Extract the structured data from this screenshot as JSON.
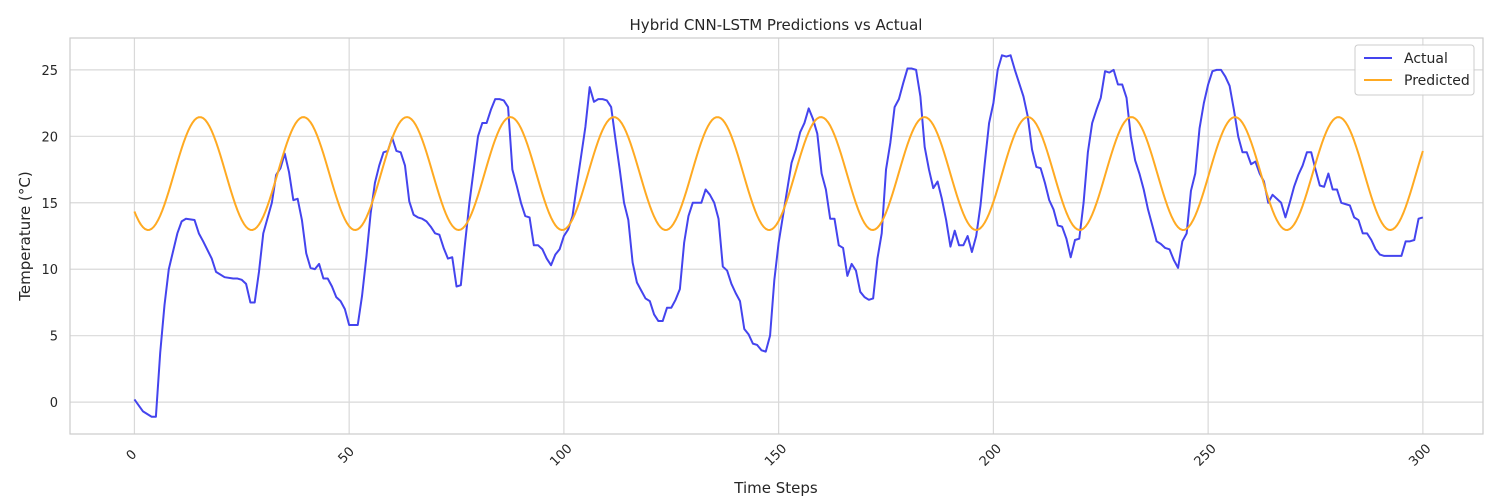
{
  "chart_data": {
    "type": "line",
    "title": "Hybrid CNN-LSTM Predictions vs Actual",
    "xlabel": "Time Steps",
    "ylabel": "Temperature (°C)",
    "xlim": [
      -15,
      314
    ],
    "ylim": [
      -2.4,
      27.4
    ],
    "x_ticks": [
      0,
      50,
      100,
      150,
      200,
      250,
      300
    ],
    "y_ticks": [
      0,
      5,
      10,
      15,
      20,
      25
    ],
    "x_tick_rotation": 45,
    "grid": true,
    "legend_position": "top-right",
    "colors": {
      "actual": "#4444ee",
      "predicted": "#ffaa22",
      "grid": "#d9d9d9",
      "axes": "#cccccc"
    },
    "actual_points": [
      [
        0,
        0.2
      ],
      [
        2,
        -0.7
      ],
      [
        4,
        -1.1
      ],
      [
        5,
        -1.1
      ],
      [
        6,
        3.7
      ],
      [
        7,
        7.3
      ],
      [
        8,
        10.0
      ],
      [
        10,
        12.7
      ],
      [
        11,
        13.6
      ],
      [
        12,
        13.8
      ],
      [
        14,
        13.7
      ],
      [
        15,
        12.7
      ],
      [
        16,
        12.1
      ],
      [
        18,
        10.8
      ],
      [
        19,
        9.8
      ],
      [
        21,
        9.4
      ],
      [
        23,
        9.3
      ],
      [
        24,
        9.3
      ],
      [
        25,
        9.2
      ],
      [
        26,
        8.9
      ],
      [
        27,
        7.5
      ],
      [
        28,
        7.5
      ],
      [
        29,
        9.8
      ],
      [
        30,
        12.7
      ],
      [
        32,
        15.0
      ],
      [
        33,
        17.1
      ],
      [
        34,
        17.6
      ],
      [
        35,
        18.7
      ],
      [
        36,
        17.3
      ],
      [
        37,
        15.2
      ],
      [
        38,
        15.3
      ],
      [
        39,
        13.7
      ],
      [
        40,
        11.2
      ],
      [
        41,
        10.1
      ],
      [
        42,
        10.0
      ],
      [
        43,
        10.4
      ],
      [
        44,
        9.3
      ],
      [
        45,
        9.3
      ],
      [
        46,
        8.7
      ],
      [
        47,
        7.9
      ],
      [
        48,
        7.6
      ],
      [
        49,
        7.0
      ],
      [
        50,
        5.8
      ],
      [
        52,
        5.8
      ],
      [
        53,
        8.0
      ],
      [
        54,
        10.9
      ],
      [
        55,
        14.2
      ],
      [
        56,
        16.5
      ],
      [
        57,
        17.8
      ],
      [
        58,
        18.8
      ],
      [
        59,
        18.9
      ],
      [
        60,
        19.9
      ],
      [
        61,
        18.9
      ],
      [
        62,
        18.8
      ],
      [
        63,
        17.8
      ],
      [
        64,
        15.1
      ],
      [
        65,
        14.1
      ],
      [
        66,
        13.9
      ],
      [
        67,
        13.8
      ],
      [
        68,
        13.6
      ],
      [
        69,
        13.2
      ],
      [
        70,
        12.7
      ],
      [
        71,
        12.6
      ],
      [
        72,
        11.6
      ],
      [
        73,
        10.8
      ],
      [
        74,
        10.9
      ],
      [
        75,
        8.7
      ],
      [
        76,
        8.8
      ],
      [
        77,
        12.0
      ],
      [
        78,
        15.0
      ],
      [
        79,
        17.5
      ],
      [
        80,
        20.0
      ],
      [
        81,
        21.0
      ],
      [
        82,
        21.0
      ],
      [
        83,
        22.0
      ],
      [
        84,
        22.8
      ],
      [
        85,
        22.8
      ],
      [
        86,
        22.7
      ],
      [
        87,
        22.2
      ],
      [
        88,
        17.5
      ],
      [
        89,
        16.3
      ],
      [
        90,
        15.0
      ],
      [
        91,
        14.0
      ],
      [
        92,
        13.9
      ],
      [
        93,
        11.8
      ],
      [
        94,
        11.8
      ],
      [
        95,
        11.5
      ],
      [
        96,
        10.8
      ],
      [
        97,
        10.3
      ],
      [
        98,
        11.1
      ],
      [
        99,
        11.5
      ],
      [
        100,
        12.5
      ],
      [
        101,
        13.0
      ],
      [
        102,
        14.0
      ],
      [
        103,
        16.3
      ],
      [
        104,
        18.5
      ],
      [
        105,
        20.7
      ],
      [
        106,
        23.7
      ],
      [
        107,
        22.6
      ],
      [
        108,
        22.8
      ],
      [
        109,
        22.8
      ],
      [
        110,
        22.7
      ],
      [
        111,
        22.2
      ],
      [
        112,
        19.8
      ],
      [
        113,
        17.5
      ],
      [
        114,
        15.0
      ],
      [
        115,
        13.7
      ],
      [
        116,
        10.5
      ],
      [
        117,
        9.0
      ],
      [
        118,
        8.4
      ],
      [
        119,
        7.8
      ],
      [
        120,
        7.6
      ],
      [
        121,
        6.6
      ],
      [
        122,
        6.1
      ],
      [
        123,
        6.1
      ],
      [
        124,
        7.1
      ],
      [
        125,
        7.1
      ],
      [
        126,
        7.7
      ],
      [
        127,
        8.5
      ],
      [
        128,
        12.0
      ],
      [
        129,
        14.0
      ],
      [
        130,
        15.0
      ],
      [
        131,
        15.0
      ],
      [
        132,
        15.0
      ],
      [
        133,
        16.0
      ],
      [
        134,
        15.6
      ],
      [
        135,
        15.0
      ],
      [
        136,
        13.8
      ],
      [
        137,
        10.2
      ],
      [
        138,
        9.9
      ],
      [
        139,
        8.9
      ],
      [
        140,
        8.2
      ],
      [
        141,
        7.6
      ],
      [
        142,
        5.5
      ],
      [
        143,
        5.1
      ],
      [
        144,
        4.4
      ],
      [
        145,
        4.3
      ],
      [
        146,
        3.9
      ],
      [
        147,
        3.8
      ],
      [
        148,
        5.0
      ],
      [
        149,
        9.2
      ],
      [
        150,
        12.0
      ],
      [
        151,
        14.0
      ],
      [
        152,
        16.0
      ],
      [
        153,
        18.0
      ],
      [
        154,
        19.0
      ],
      [
        155,
        20.3
      ],
      [
        156,
        21.0
      ],
      [
        157,
        22.1
      ],
      [
        158,
        21.3
      ],
      [
        159,
        20.2
      ],
      [
        160,
        17.2
      ],
      [
        161,
        16.0
      ],
      [
        162,
        13.8
      ],
      [
        163,
        13.8
      ],
      [
        164,
        11.8
      ],
      [
        165,
        11.6
      ],
      [
        166,
        9.5
      ],
      [
        167,
        10.4
      ],
      [
        168,
        9.9
      ],
      [
        169,
        8.3
      ],
      [
        170,
        7.9
      ],
      [
        171,
        7.7
      ],
      [
        172,
        7.8
      ],
      [
        173,
        10.8
      ],
      [
        174,
        12.7
      ],
      [
        175,
        17.5
      ],
      [
        176,
        19.5
      ],
      [
        177,
        22.2
      ],
      [
        178,
        22.8
      ],
      [
        179,
        24.0
      ],
      [
        180,
        25.1
      ],
      [
        181,
        25.1
      ],
      [
        182,
        25.0
      ],
      [
        183,
        23.0
      ],
      [
        184,
        19.2
      ],
      [
        185,
        17.5
      ],
      [
        186,
        16.1
      ],
      [
        187,
        16.6
      ],
      [
        188,
        15.3
      ],
      [
        189,
        13.7
      ],
      [
        190,
        11.7
      ],
      [
        191,
        12.9
      ],
      [
        192,
        11.8
      ],
      [
        193,
        11.8
      ],
      [
        194,
        12.5
      ],
      [
        195,
        11.3
      ],
      [
        196,
        12.5
      ],
      [
        197,
        14.8
      ],
      [
        198,
        18.0
      ],
      [
        199,
        21.0
      ],
      [
        200,
        22.5
      ],
      [
        201,
        25.0
      ],
      [
        202,
        26.1
      ],
      [
        203,
        26.0
      ],
      [
        204,
        26.1
      ],
      [
        205,
        25.0
      ],
      [
        206,
        24.0
      ],
      [
        207,
        23.0
      ],
      [
        208,
        21.5
      ],
      [
        209,
        19.0
      ],
      [
        210,
        17.7
      ],
      [
        211,
        17.6
      ],
      [
        212,
        16.5
      ],
      [
        213,
        15.2
      ],
      [
        214,
        14.5
      ],
      [
        215,
        13.3
      ],
      [
        216,
        13.2
      ],
      [
        217,
        12.3
      ],
      [
        218,
        10.9
      ],
      [
        219,
        12.2
      ],
      [
        220,
        12.3
      ],
      [
        221,
        15.0
      ],
      [
        222,
        18.8
      ],
      [
        223,
        21.0
      ],
      [
        224,
        22.0
      ],
      [
        225,
        22.9
      ],
      [
        226,
        24.9
      ],
      [
        227,
        24.8
      ],
      [
        228,
        25.0
      ],
      [
        229,
        23.9
      ],
      [
        230,
        23.9
      ],
      [
        231,
        22.9
      ],
      [
        232,
        20.0
      ],
      [
        233,
        18.2
      ],
      [
        234,
        17.2
      ],
      [
        235,
        16.0
      ],
      [
        236,
        14.5
      ],
      [
        237,
        13.3
      ],
      [
        238,
        12.1
      ],
      [
        239,
        11.9
      ],
      [
        240,
        11.6
      ],
      [
        241,
        11.5
      ],
      [
        242,
        10.7
      ],
      [
        243,
        10.1
      ],
      [
        244,
        12.1
      ],
      [
        245,
        12.7
      ],
      [
        246,
        15.9
      ],
      [
        247,
        17.2
      ],
      [
        248,
        20.6
      ],
      [
        249,
        22.5
      ],
      [
        250,
        23.9
      ],
      [
        251,
        24.9
      ],
      [
        252,
        25.0
      ],
      [
        253,
        25.0
      ],
      [
        254,
        24.5
      ],
      [
        255,
        23.8
      ],
      [
        256,
        22.0
      ],
      [
        257,
        20.0
      ],
      [
        258,
        18.8
      ],
      [
        259,
        18.8
      ],
      [
        260,
        17.9
      ],
      [
        261,
        18.1
      ],
      [
        262,
        17.2
      ],
      [
        263,
        16.6
      ],
      [
        264,
        15.0
      ],
      [
        265,
        15.6
      ],
      [
        266,
        15.3
      ],
      [
        267,
        15.0
      ],
      [
        268,
        13.9
      ],
      [
        269,
        15.0
      ],
      [
        270,
        16.2
      ],
      [
        271,
        17.1
      ],
      [
        272,
        17.8
      ],
      [
        273,
        18.8
      ],
      [
        274,
        18.8
      ],
      [
        275,
        17.5
      ],
      [
        276,
        16.3
      ],
      [
        277,
        16.2
      ],
      [
        278,
        17.2
      ],
      [
        279,
        16.0
      ],
      [
        280,
        16.0
      ],
      [
        281,
        15.0
      ],
      [
        282,
        14.9
      ],
      [
        283,
        14.8
      ],
      [
        284,
        13.9
      ],
      [
        285,
        13.7
      ],
      [
        286,
        12.7
      ],
      [
        287,
        12.7
      ],
      [
        288,
        12.2
      ],
      [
        289,
        11.5
      ],
      [
        290,
        11.1
      ],
      [
        291,
        11.0
      ],
      [
        292,
        11.0
      ],
      [
        293,
        11.0
      ],
      [
        294,
        11.0
      ],
      [
        295,
        11.0
      ],
      [
        296,
        12.1
      ],
      [
        297,
        12.1
      ],
      [
        298,
        12.2
      ],
      [
        299,
        13.8
      ],
      [
        300,
        13.9
      ]
    ],
    "predicted_cycle_model": {
      "start": 0,
      "end": 300,
      "period": 24.1,
      "trough": 12.95,
      "peak": 21.45,
      "phase_start": 3.2
    },
    "series": [
      {
        "name": "Actual",
        "key": "actual"
      },
      {
        "name": "Predicted",
        "key": "predicted"
      }
    ]
  }
}
